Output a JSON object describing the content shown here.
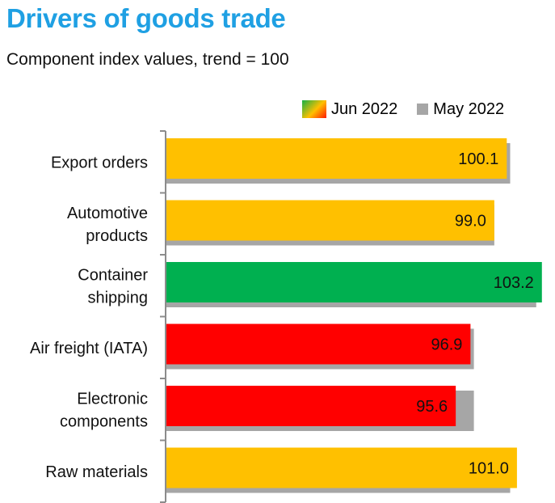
{
  "chart_data": {
    "type": "bar",
    "orientation": "horizontal",
    "title": "Drivers of goods trade",
    "subtitle": "Component index values, trend = 100",
    "categories": [
      [
        "Export orders"
      ],
      [
        "Automotive",
        "products"
      ],
      [
        "Container",
        "shipping"
      ],
      [
        "Air freight (IATA)"
      ],
      [
        "Electronic",
        "components"
      ],
      [
        "Raw materials"
      ]
    ],
    "series": [
      {
        "name": "Jun 2022",
        "values": [
          100.1,
          99.0,
          103.2,
          96.9,
          95.6,
          101.0
        ],
        "labels": [
          "100.1",
          "99.0",
          "103.2",
          "96.9",
          "95.6",
          "101.0"
        ],
        "colors": [
          "#ffc000",
          "#ffc000",
          "#00b050",
          "#ff0000",
          "#ff0000",
          "#ffc000"
        ]
      },
      {
        "name": "May 2022",
        "values": [
          100.4,
          99.0,
          102.7,
          97.2,
          97.2,
          100.4
        ],
        "color": "#a6a6a6"
      }
    ],
    "xlim": [
      70,
      104
    ],
    "legend_position": "top-right"
  }
}
